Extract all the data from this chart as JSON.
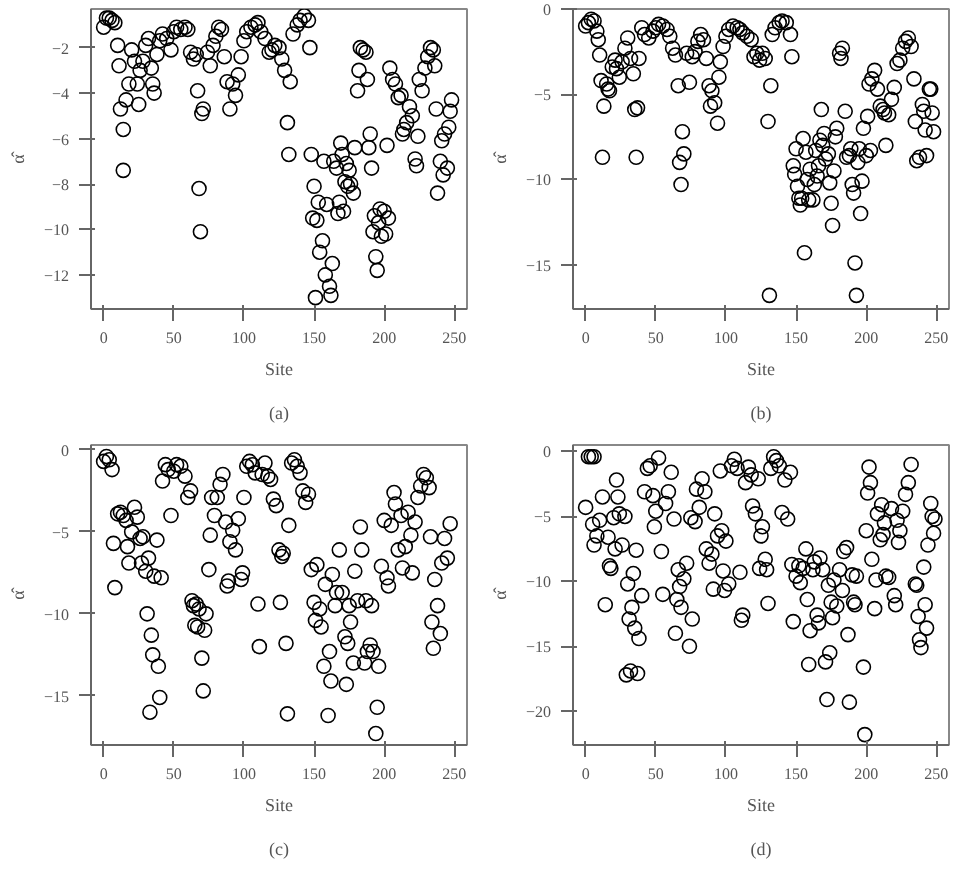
{
  "chart_data": [
    {
      "type": "scatter",
      "xlabel": "Site",
      "ylabel": "α̂",
      "annotations": [
        "(a)"
      ],
      "marker": "circle",
      "color": "#000000",
      "xlim": [
        -9,
        259
      ],
      "ylim": [
        -13.5,
        -0.3
      ],
      "xticks": [
        0,
        50,
        100,
        150,
        200,
        250
      ],
      "yticks": [
        -12,
        -10,
        -8,
        -6,
        -4,
        -2
      ],
      "x": [
        0,
        2,
        4,
        6,
        8,
        10,
        11,
        12,
        14,
        14,
        16,
        18,
        20,
        22,
        24,
        25,
        26,
        28,
        30,
        32,
        34,
        35,
        36,
        38,
        40,
        42,
        45,
        48,
        50,
        52,
        55,
        58,
        60,
        62,
        64,
        66,
        67,
        68,
        69,
        70,
        71,
        74,
        76,
        78,
        80,
        82,
        84,
        86,
        88,
        90,
        92,
        94,
        96,
        98,
        100,
        102,
        105,
        108,
        110,
        112,
        115,
        118,
        120,
        122,
        125,
        127,
        129,
        131,
        132,
        133,
        135,
        138,
        140,
        143,
        146,
        147,
        148,
        149,
        150,
        151,
        152,
        153,
        154,
        156,
        157,
        158,
        159,
        161,
        162,
        163,
        164,
        166,
        167,
        168,
        169,
        170,
        171,
        172,
        173,
        174,
        175,
        176,
        178,
        179,
        181,
        182,
        183,
        185,
        187,
        188,
        189,
        190,
        191,
        192,
        193,
        194,
        195,
        196,
        197,
        198,
        200,
        201,
        202,
        203,
        204,
        206,
        208,
        210,
        212,
        213,
        214,
        216,
        218,
        220,
        222,
        223,
        224,
        225,
        227,
        229,
        231,
        233,
        235,
        236,
        237,
        238,
        240,
        241,
        242,
        243,
        245,
        246,
        247,
        248
      ],
      "values": [
        -1.1,
        -0.7,
        -0.7,
        -0.8,
        -0.9,
        -1.9,
        -2.8,
        -4.7,
        -5.6,
        -7.4,
        -4.3,
        -3.6,
        -2.1,
        -2.6,
        -3.6,
        -4.5,
        -3.0,
        -2.6,
        -1.9,
        -1.6,
        -2.9,
        -3.6,
        -4.0,
        -2.3,
        -1.7,
        -1.4,
        -1.6,
        -2.1,
        -1.3,
        -1.1,
        -1.2,
        -1.1,
        -1.2,
        -2.2,
        -2.5,
        -2.3,
        -3.9,
        -8.2,
        -10.1,
        -4.9,
        -4.7,
        -2.2,
        -2.8,
        -1.9,
        -1.5,
        -1.1,
        -1.2,
        -2.4,
        -3.5,
        -4.7,
        -3.6,
        -4.1,
        -3.2,
        -2.4,
        -1.7,
        -1.3,
        -1.1,
        -1.0,
        -0.9,
        -1.3,
        -1.6,
        -2.2,
        -2.1,
        -1.9,
        -2.0,
        -2.5,
        -3.0,
        -5.3,
        -6.7,
        -3.5,
        -1.4,
        -1.0,
        -0.8,
        -0.6,
        -0.8,
        -2.0,
        -6.7,
        -9.5,
        -8.1,
        -13.0,
        -9.6,
        -8.8,
        -11.0,
        -10.5,
        -7.0,
        -12.0,
        -8.9,
        -12.5,
        -12.9,
        -11.5,
        -7.0,
        -7.3,
        -9.3,
        -8.8,
        -6.2,
        -6.7,
        -9.2,
        -7.9,
        -7.1,
        -8.1,
        -7.4,
        -8.0,
        -8.4,
        -6.4,
        -3.9,
        -3.0,
        -2.0,
        -2.1,
        -2.2,
        -3.4,
        -6.4,
        -5.8,
        -7.3,
        -10.1,
        -9.4,
        -11.2,
        -11.8,
        -9.7,
        -9.1,
        -10.3,
        -9.2,
        -10.2,
        -6.3,
        -9.5,
        -2.9,
        -3.4,
        -3.6,
        -4.2,
        -4.1,
        -5.8,
        -5.6,
        -5.3,
        -4.6,
        -5.0,
        -6.9,
        -7.2,
        -5.9,
        -3.4,
        -3.9,
        -2.9,
        -2.4,
        -2.0,
        -2.1,
        -2.8,
        -4.7,
        -8.4,
        -7.0,
        -6.1,
        -7.6,
        -5.8,
        -7.3,
        -5.5,
        -4.8,
        -4.3
      ]
    },
    {
      "type": "scatter",
      "xlabel": "Site",
      "ylabel": "α̂",
      "annotations": [
        "(b)"
      ],
      "marker": "circle",
      "color": "#000000",
      "xlim": [
        -9,
        259
      ],
      "ylim": [
        -17.6,
        0
      ],
      "xticks": [
        0,
        50,
        100,
        150,
        200,
        250
      ],
      "yticks": [
        -15,
        -10,
        -5,
        0
      ],
      "x": [
        0,
        2,
        4,
        6,
        8,
        9,
        10,
        11,
        12,
        13,
        15,
        16,
        17,
        19,
        21,
        22,
        24,
        26,
        28,
        30,
        32,
        34,
        35,
        36,
        37,
        38,
        40,
        42,
        45,
        48,
        50,
        52,
        55,
        58,
        60,
        62,
        64,
        66,
        67,
        68,
        69,
        70,
        72,
        74,
        76,
        78,
        80,
        82,
        84,
        86,
        88,
        89,
        90,
        92,
        94,
        95,
        96,
        98,
        100,
        102,
        105,
        108,
        110,
        112,
        115,
        118,
        120,
        122,
        124,
        126,
        128,
        130,
        131,
        132,
        133,
        135,
        138,
        140,
        143,
        146,
        147,
        148,
        149,
        150,
        151,
        152,
        153,
        154,
        155,
        156,
        157,
        158,
        159,
        160,
        162,
        163,
        164,
        165,
        166,
        167,
        168,
        169,
        170,
        171,
        173,
        174,
        175,
        176,
        177,
        178,
        179,
        181,
        182,
        183,
        185,
        186,
        188,
        189,
        190,
        191,
        192,
        193,
        194,
        195,
        196,
        197,
        198,
        200,
        201,
        202,
        203,
        204,
        206,
        208,
        210,
        212,
        213,
        214,
        216,
        218,
        220,
        222,
        224,
        226,
        228,
        230,
        232,
        234,
        235,
        236,
        238,
        240,
        241,
        242,
        243,
        245,
        246,
        247,
        248
      ],
      "values": [
        -1.0,
        -0.8,
        -0.6,
        -0.7,
        -1.3,
        -1.8,
        -2.7,
        -4.2,
        -8.7,
        -5.7,
        -4.4,
        -4.7,
        -4.8,
        -3.4,
        -3.0,
        -3.5,
        -4.0,
        -3.1,
        -2.3,
        -1.7,
        -2.9,
        -3.8,
        -5.9,
        -8.7,
        -5.8,
        -2.9,
        -1.1,
        -1.5,
        -1.7,
        -1.3,
        -1.1,
        -0.9,
        -1.0,
        -1.2,
        -1.6,
        -2.3,
        -2.7,
        -4.5,
        -9.0,
        -10.3,
        -7.2,
        -8.5,
        -2.6,
        -4.3,
        -2.8,
        -2.5,
        -1.9,
        -1.5,
        -1.8,
        -2.9,
        -4.5,
        -5.7,
        -4.8,
        -5.5,
        -6.7,
        -4.0,
        -3.1,
        -2.2,
        -1.6,
        -1.2,
        -1.0,
        -1.1,
        -1.2,
        -1.4,
        -1.6,
        -1.8,
        -2.8,
        -2.6,
        -3.0,
        -2.6,
        -2.9,
        -6.6,
        -16.8,
        -4.5,
        -1.5,
        -1.1,
        -0.8,
        -0.7,
        -0.8,
        -1.5,
        -2.8,
        -9.2,
        -9.7,
        -8.2,
        -10.4,
        -11.1,
        -11.5,
        -11.1,
        -7.6,
        -14.3,
        -8.4,
        -10.0,
        -11.2,
        -9.4,
        -11.2,
        -10.3,
        -8.3,
        -9.8,
        -9.2,
        -7.7,
        -5.9,
        -8.0,
        -7.3,
        -8.8,
        -8.5,
        -10.2,
        -11.4,
        -12.7,
        -9.5,
        -7.5,
        -7.0,
        -2.6,
        -2.9,
        -2.3,
        -6.0,
        -8.7,
        -8.6,
        -8.2,
        -10.3,
        -10.8,
        -14.9,
        -16.8,
        -9.0,
        -8.2,
        -12.0,
        -10.1,
        -7.0,
        -8.6,
        -6.3,
        -4.4,
        -8.3,
        -4.1,
        -3.6,
        -4.7,
        -5.7,
        -5.9,
        -6.1,
        -8.0,
        -6.2,
        -5.3,
        -4.6,
        -3.2,
        -3.0,
        -2.3,
        -1.9,
        -1.7,
        -2.2,
        -4.1,
        -6.6,
        -8.9,
        -8.7,
        -5.6,
        -6.0,
        -7.1,
        -8.6,
        -4.7,
        -4.7,
        -6.1,
        -7.2
      ]
    },
    {
      "type": "scatter",
      "xlabel": "Site",
      "ylabel": "α̂",
      "annotations": [
        "(c)"
      ],
      "marker": "circle",
      "color": "#000000",
      "xlim": [
        -9,
        259
      ],
      "ylim": [
        -18,
        0.3
      ],
      "xticks": [
        0,
        50,
        100,
        150,
        200,
        250
      ],
      "yticks": [
        -15,
        -10,
        -5,
        0
      ],
      "x": [
        0,
        2,
        4,
        6,
        7,
        8,
        10,
        12,
        14,
        16,
        17,
        18,
        20,
        22,
        24,
        26,
        27,
        28,
        30,
        31,
        32,
        33,
        34,
        35,
        36,
        38,
        39,
        40,
        41,
        42,
        44,
        46,
        48,
        50,
        52,
        55,
        58,
        60,
        62,
        63,
        64,
        65,
        66,
        67,
        68,
        70,
        71,
        72,
        73,
        75,
        76,
        77,
        79,
        81,
        83,
        85,
        87,
        88,
        89,
        90,
        92,
        94,
        96,
        98,
        99,
        100,
        102,
        104,
        106,
        108,
        110,
        111,
        113,
        115,
        117,
        119,
        121,
        123,
        125,
        126,
        127,
        128,
        130,
        131,
        132,
        134,
        136,
        138,
        140,
        142,
        144,
        146,
        148,
        150,
        151,
        152,
        154,
        155,
        157,
        158,
        160,
        161,
        162,
        163,
        165,
        166,
        168,
        170,
        172,
        173,
        174,
        175,
        176,
        178,
        179,
        181,
        183,
        184,
        186,
        187,
        188,
        190,
        191,
        192,
        194,
        195,
        196,
        198,
        200,
        202,
        203,
        205,
        207,
        208,
        210,
        212,
        213,
        215,
        217,
        219,
        220,
        222,
        224,
        226,
        228,
        230,
        232,
        233,
        234,
        235,
        236,
        238,
        240,
        241,
        243,
        245,
        247
      ],
      "values": [
        -0.7,
        -0.4,
        -0.6,
        -1.2,
        -5.7,
        -8.4,
        -3.9,
        -3.8,
        -4.0,
        -4.3,
        -5.9,
        -6.9,
        -5.0,
        -3.5,
        -4.1,
        -5.4,
        -6.9,
        -5.3,
        -7.4,
        -10.0,
        -6.6,
        -16.0,
        -11.3,
        -12.5,
        -7.7,
        -5.5,
        -13.2,
        -15.1,
        -7.8,
        -1.9,
        -0.9,
        -1.2,
        -4.0,
        -1.3,
        -0.9,
        -1.0,
        -1.6,
        -2.9,
        -2.5,
        -9.2,
        -9.5,
        -10.7,
        -9.4,
        -10.8,
        -9.7,
        -12.7,
        -14.7,
        -11.0,
        -10.0,
        -7.3,
        -5.2,
        -2.9,
        -4.0,
        -2.9,
        -2.1,
        -1.5,
        -4.4,
        -8.3,
        -8.0,
        -5.6,
        -4.9,
        -6.1,
        -4.2,
        -7.9,
        -7.5,
        -2.9,
        -1.0,
        -0.7,
        -0.9,
        -1.4,
        -9.4,
        -12.0,
        -1.5,
        -0.8,
        -1.6,
        -1.8,
        -3.0,
        -3.4,
        -6.1,
        -9.3,
        -6.5,
        -6.3,
        -11.8,
        -16.1,
        -4.6,
        -0.8,
        -0.6,
        -1.0,
        -1.4,
        -2.5,
        -3.2,
        -2.7,
        -7.3,
        -9.3,
        -10.4,
        -7.0,
        -9.7,
        -10.8,
        -13.2,
        -8.2,
        -16.2,
        -12.3,
        -14.1,
        -7.6,
        -9.5,
        -8.7,
        -6.1,
        -8.7,
        -11.4,
        -14.3,
        -11.8,
        -9.5,
        -10.5,
        -13.0,
        -7.4,
        -9.2,
        -4.7,
        -6.1,
        -13.0,
        -9.2,
        -12.3,
        -11.9,
        -9.5,
        -12.3,
        -17.3,
        -15.7,
        -13.2,
        -7.1,
        -4.3,
        -7.8,
        -8.3,
        -4.6,
        -2.6,
        -3.3,
        -6.1,
        -4.0,
        -7.2,
        -5.9,
        -3.8,
        -5.2,
        -7.5,
        -4.4,
        -2.9,
        -2.2,
        -1.5,
        -1.7,
        -2.3,
        -5.3,
        -10.5,
        -12.1,
        -7.9,
        -9.5,
        -11.2,
        -6.9,
        -5.4,
        -6.6,
        -4.5
      ]
    },
    {
      "type": "scatter",
      "xlabel": "Site",
      "ylabel": "α̂",
      "annotations": [
        "(d)"
      ],
      "marker": "circle",
      "color": "#000000",
      "xlim": [
        -9,
        259
      ],
      "ylim": [
        -22.6,
        0.5
      ],
      "xticks": [
        0,
        50,
        100,
        150,
        200,
        250
      ],
      "yticks": [
        -20,
        -15,
        -10,
        -5,
        0
      ],
      "x": [
        0,
        2,
        4,
        6,
        5,
        6,
        8,
        10,
        12,
        14,
        16,
        17,
        18,
        20,
        21,
        22,
        23,
        24,
        26,
        28,
        29,
        30,
        31,
        32,
        33,
        34,
        35,
        36,
        37,
        38,
        40,
        42,
        44,
        46,
        48,
        49,
        50,
        52,
        54,
        55,
        57,
        59,
        61,
        63,
        64,
        65,
        66,
        67,
        68,
        70,
        72,
        74,
        75,
        76,
        78,
        79,
        81,
        83,
        85,
        86,
        88,
        90,
        91,
        92,
        94,
        96,
        97,
        98,
        99,
        100,
        102,
        104,
        106,
        108,
        110,
        111,
        112,
        114,
        116,
        118,
        119,
        121,
        123,
        124,
        125,
        126,
        128,
        129,
        130,
        132,
        134,
        136,
        138,
        140,
        142,
        144,
        146,
        147,
        148,
        150,
        152,
        153,
        155,
        157,
        158,
        159,
        160,
        162,
        163,
        165,
        166,
        167,
        169,
        171,
        172,
        173,
        174,
        175,
        176,
        177,
        179,
        181,
        183,
        184,
        186,
        187,
        188,
        190,
        191,
        192,
        193,
        198,
        199,
        200,
        201,
        202,
        203,
        204,
        206,
        207,
        208,
        210,
        211,
        212,
        213,
        214,
        216,
        218,
        220,
        221,
        222,
        223,
        224,
        226,
        228,
        230,
        232,
        235,
        236,
        237,
        238,
        239,
        241,
        242,
        243,
        244,
        246,
        247,
        248,
        249
      ],
      "values": [
        -4.3,
        -0.4,
        -0.4,
        -0.4,
        -5.6,
        -7.2,
        -6.5,
        -5.3,
        -3.5,
        -11.8,
        -6.6,
        -8.8,
        -9.0,
        -5.1,
        -7.5,
        -2.2,
        -3.5,
        -4.8,
        -7.2,
        -5.0,
        -17.2,
        -10.2,
        -12.9,
        -16.9,
        -12.0,
        -9.4,
        -13.6,
        -7.6,
        -17.1,
        -14.4,
        -11.1,
        -3.1,
        -1.3,
        -1.1,
        -3.4,
        -5.8,
        -4.6,
        -0.5,
        -7.7,
        -11.0,
        -4.0,
        -3.1,
        -1.6,
        -5.2,
        -14.0,
        -11.4,
        -9.1,
        -10.4,
        -12.0,
        -9.8,
        -8.6,
        -15.0,
        -5.1,
        -12.9,
        -5.4,
        -2.9,
        -4.3,
        -2.1,
        -3.1,
        -7.5,
        -8.6,
        -7.9,
        -10.6,
        -4.8,
        -6.5,
        -1.5,
        -6.1,
        -9.2,
        -10.7,
        -6.9,
        -10.2,
        -1.1,
        -0.6,
        -1.3,
        -9.3,
        -13.0,
        -12.6,
        -2.4,
        -1.2,
        -1.8,
        -4.2,
        -4.8,
        -2.1,
        -9.0,
        -6.5,
        -5.8,
        -8.3,
        -9.1,
        -11.7,
        -1.3,
        -0.4,
        -0.7,
        -1.1,
        -4.7,
        -2.2,
        -5.2,
        -1.6,
        -8.7,
        -13.1,
        -9.6,
        -8.8,
        -10.1,
        -9.0,
        -7.5,
        -11.4,
        -16.4,
        -13.8,
        -9.1,
        -8.5,
        -12.6,
        -13.2,
        -8.2,
        -9.1,
        -16.2,
        -19.1,
        -10.3,
        -15.5,
        -11.6,
        -12.8,
        -9.9,
        -11.9,
        -9.1,
        -10.7,
        -7.7,
        -7.4,
        -14.1,
        -19.3,
        -9.5,
        -11.6,
        -11.8,
        -9.6,
        -16.6,
        -21.8,
        -6.1,
        -3.2,
        -1.2,
        -2.4,
        -8.3,
        -12.1,
        -9.9,
        -4.8,
        -6.8,
        -4.1,
        -6.4,
        -5.5,
        -9.6,
        -9.7,
        -4.4,
        -11.1,
        -11.8,
        -5.3,
        -7.0,
        -6.1,
        -4.6,
        -3.3,
        -2.4,
        -1.0,
        -10.2,
        -10.3,
        -12.7,
        -14.5,
        -15.1,
        -8.9,
        -11.8,
        -13.6,
        -7.2,
        -4.0,
        -5.0,
        -6.3,
        -5.2
      ]
    }
  ]
}
